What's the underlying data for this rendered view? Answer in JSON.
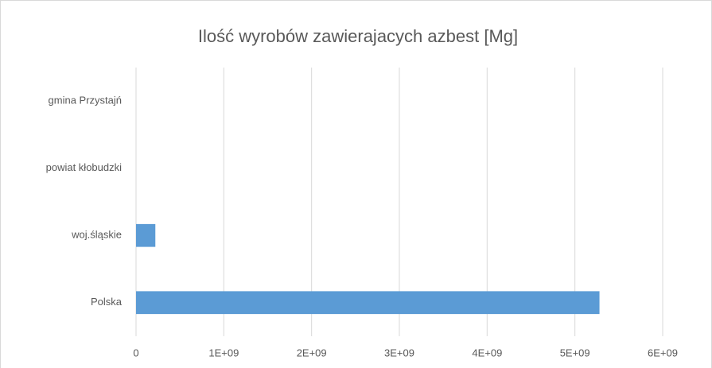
{
  "chart_data": {
    "type": "bar",
    "orientation": "horizontal",
    "title": "Ilość wyrobów zawierajacych azbest [Mg]",
    "categories": [
      "Polska",
      "woj.śląskie",
      "powiat kłobudzki",
      "gmina Przystajń"
    ],
    "values": [
      5280000000,
      220000000,
      0,
      0
    ],
    "color": "#5b9bd5",
    "xlim": [
      0,
      6000000000
    ],
    "xticks": [
      0,
      {
        "value": 1000000000,
        "label": "1E+09"
      },
      {
        "value": 2000000000,
        "label": "2E+09"
      },
      {
        "value": 3000000000,
        "label": "3E+09"
      },
      {
        "value": 4000000000,
        "label": "4E+09"
      },
      {
        "value": 5000000000,
        "label": "5E+09"
      },
      {
        "value": 6000000000,
        "label": "6E+09"
      }
    ],
    "grid": true
  }
}
